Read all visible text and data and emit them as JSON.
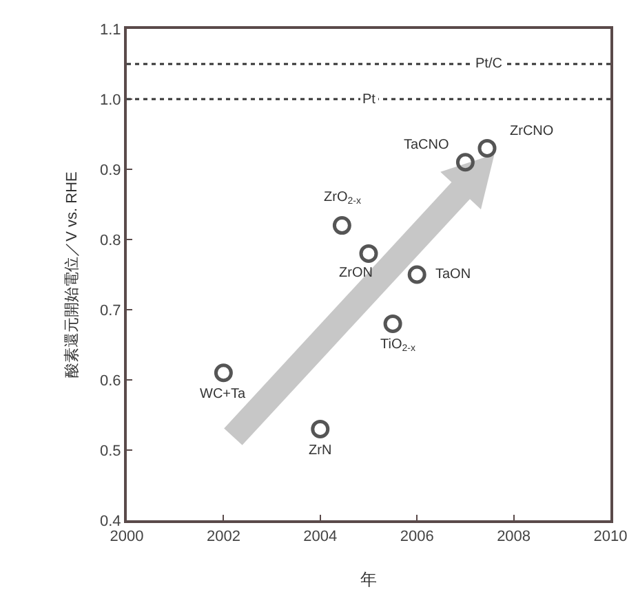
{
  "chart_data": {
    "type": "scatter",
    "xlabel": "年",
    "ylabel": "酸素還元開始電位／V vs. RHE",
    "x": [
      2002.0,
      2004.0,
      2004.45,
      2005.0,
      2006.0,
      2005.5,
      2007.0,
      2007.45
    ],
    "values": [
      0.61,
      0.53,
      0.82,
      0.78,
      0.75,
      0.68,
      0.91,
      0.93
    ],
    "color": "#555555",
    "marker": "circle",
    "xlim": [
      2000,
      2010
    ],
    "xticks": [
      2000,
      2002,
      2004,
      2006,
      2008,
      2010
    ],
    "ylim": [
      0.4,
      1.1
    ],
    "yticks": [
      0.4,
      0.5,
      0.6,
      0.7,
      0.8,
      0.9,
      {
        "value": 1.0,
        "label": "1.0"
      },
      1.1
    ],
    "ref_lines": [
      {
        "axis": "y",
        "value": 1.05,
        "label": "Pt/C",
        "color": "#333333",
        "line_style": "dotted"
      },
      {
        "axis": "y",
        "value": 1.0,
        "label": "Pt",
        "color": "#333333",
        "line_style": "dotted"
      }
    ],
    "annotations": [
      {
        "text": "WC+Ta",
        "x": 2002.0,
        "y": 0.61
      },
      {
        "text": "ZrN",
        "x": 2004.0,
        "y": 0.53
      },
      {
        "text": "ZrO$_{2-x}$",
        "x": 2004.45,
        "y": 0.82
      },
      {
        "text": "ZrON",
        "x": 2005.0,
        "y": 0.78
      },
      {
        "text": "TaON",
        "x": 2006.0,
        "y": 0.75
      },
      {
        "text": "TiO$_{2-x}$",
        "x": 2005.5,
        "y": 0.68
      },
      {
        "text": "TaCNO",
        "x": 2007.0,
        "y": 0.91
      },
      {
        "text": "ZrCNO",
        "x": 2007.45,
        "y": 0.93
      }
    ],
    "grid": false
  }
}
